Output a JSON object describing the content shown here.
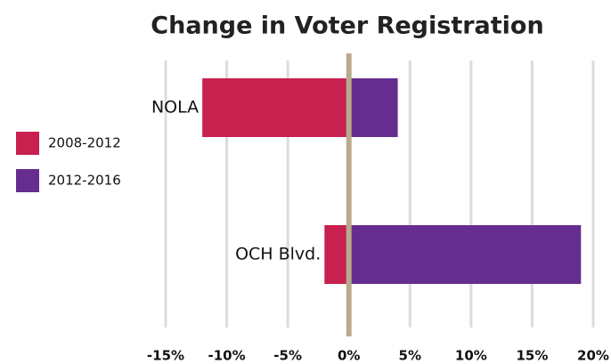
{
  "chart_data": {
    "type": "hbar",
    "title": "Change in Voter Registration",
    "categories": [
      "NOLA",
      "OCH Blvd."
    ],
    "series": [
      {
        "name": "2008-2012",
        "color": "#c8204f",
        "values": [
          -12,
          -2
        ]
      },
      {
        "name": "2012-2016",
        "color": "#652d90",
        "values": [
          4,
          19
        ]
      }
    ],
    "xlim": [
      -15,
      20
    ],
    "xticks": [
      {
        "value": -15,
        "label": "-15%"
      },
      {
        "value": -10,
        "label": "-10%"
      },
      {
        "value": -5,
        "label": "-5%"
      },
      {
        "value": 0,
        "label": "0%"
      },
      {
        "value": 5,
        "label": "5%"
      },
      {
        "value": 10,
        "label": "10%"
      },
      {
        "value": 15,
        "label": "15%"
      },
      {
        "value": 20,
        "label": "20%"
      }
    ],
    "grid": true
  }
}
